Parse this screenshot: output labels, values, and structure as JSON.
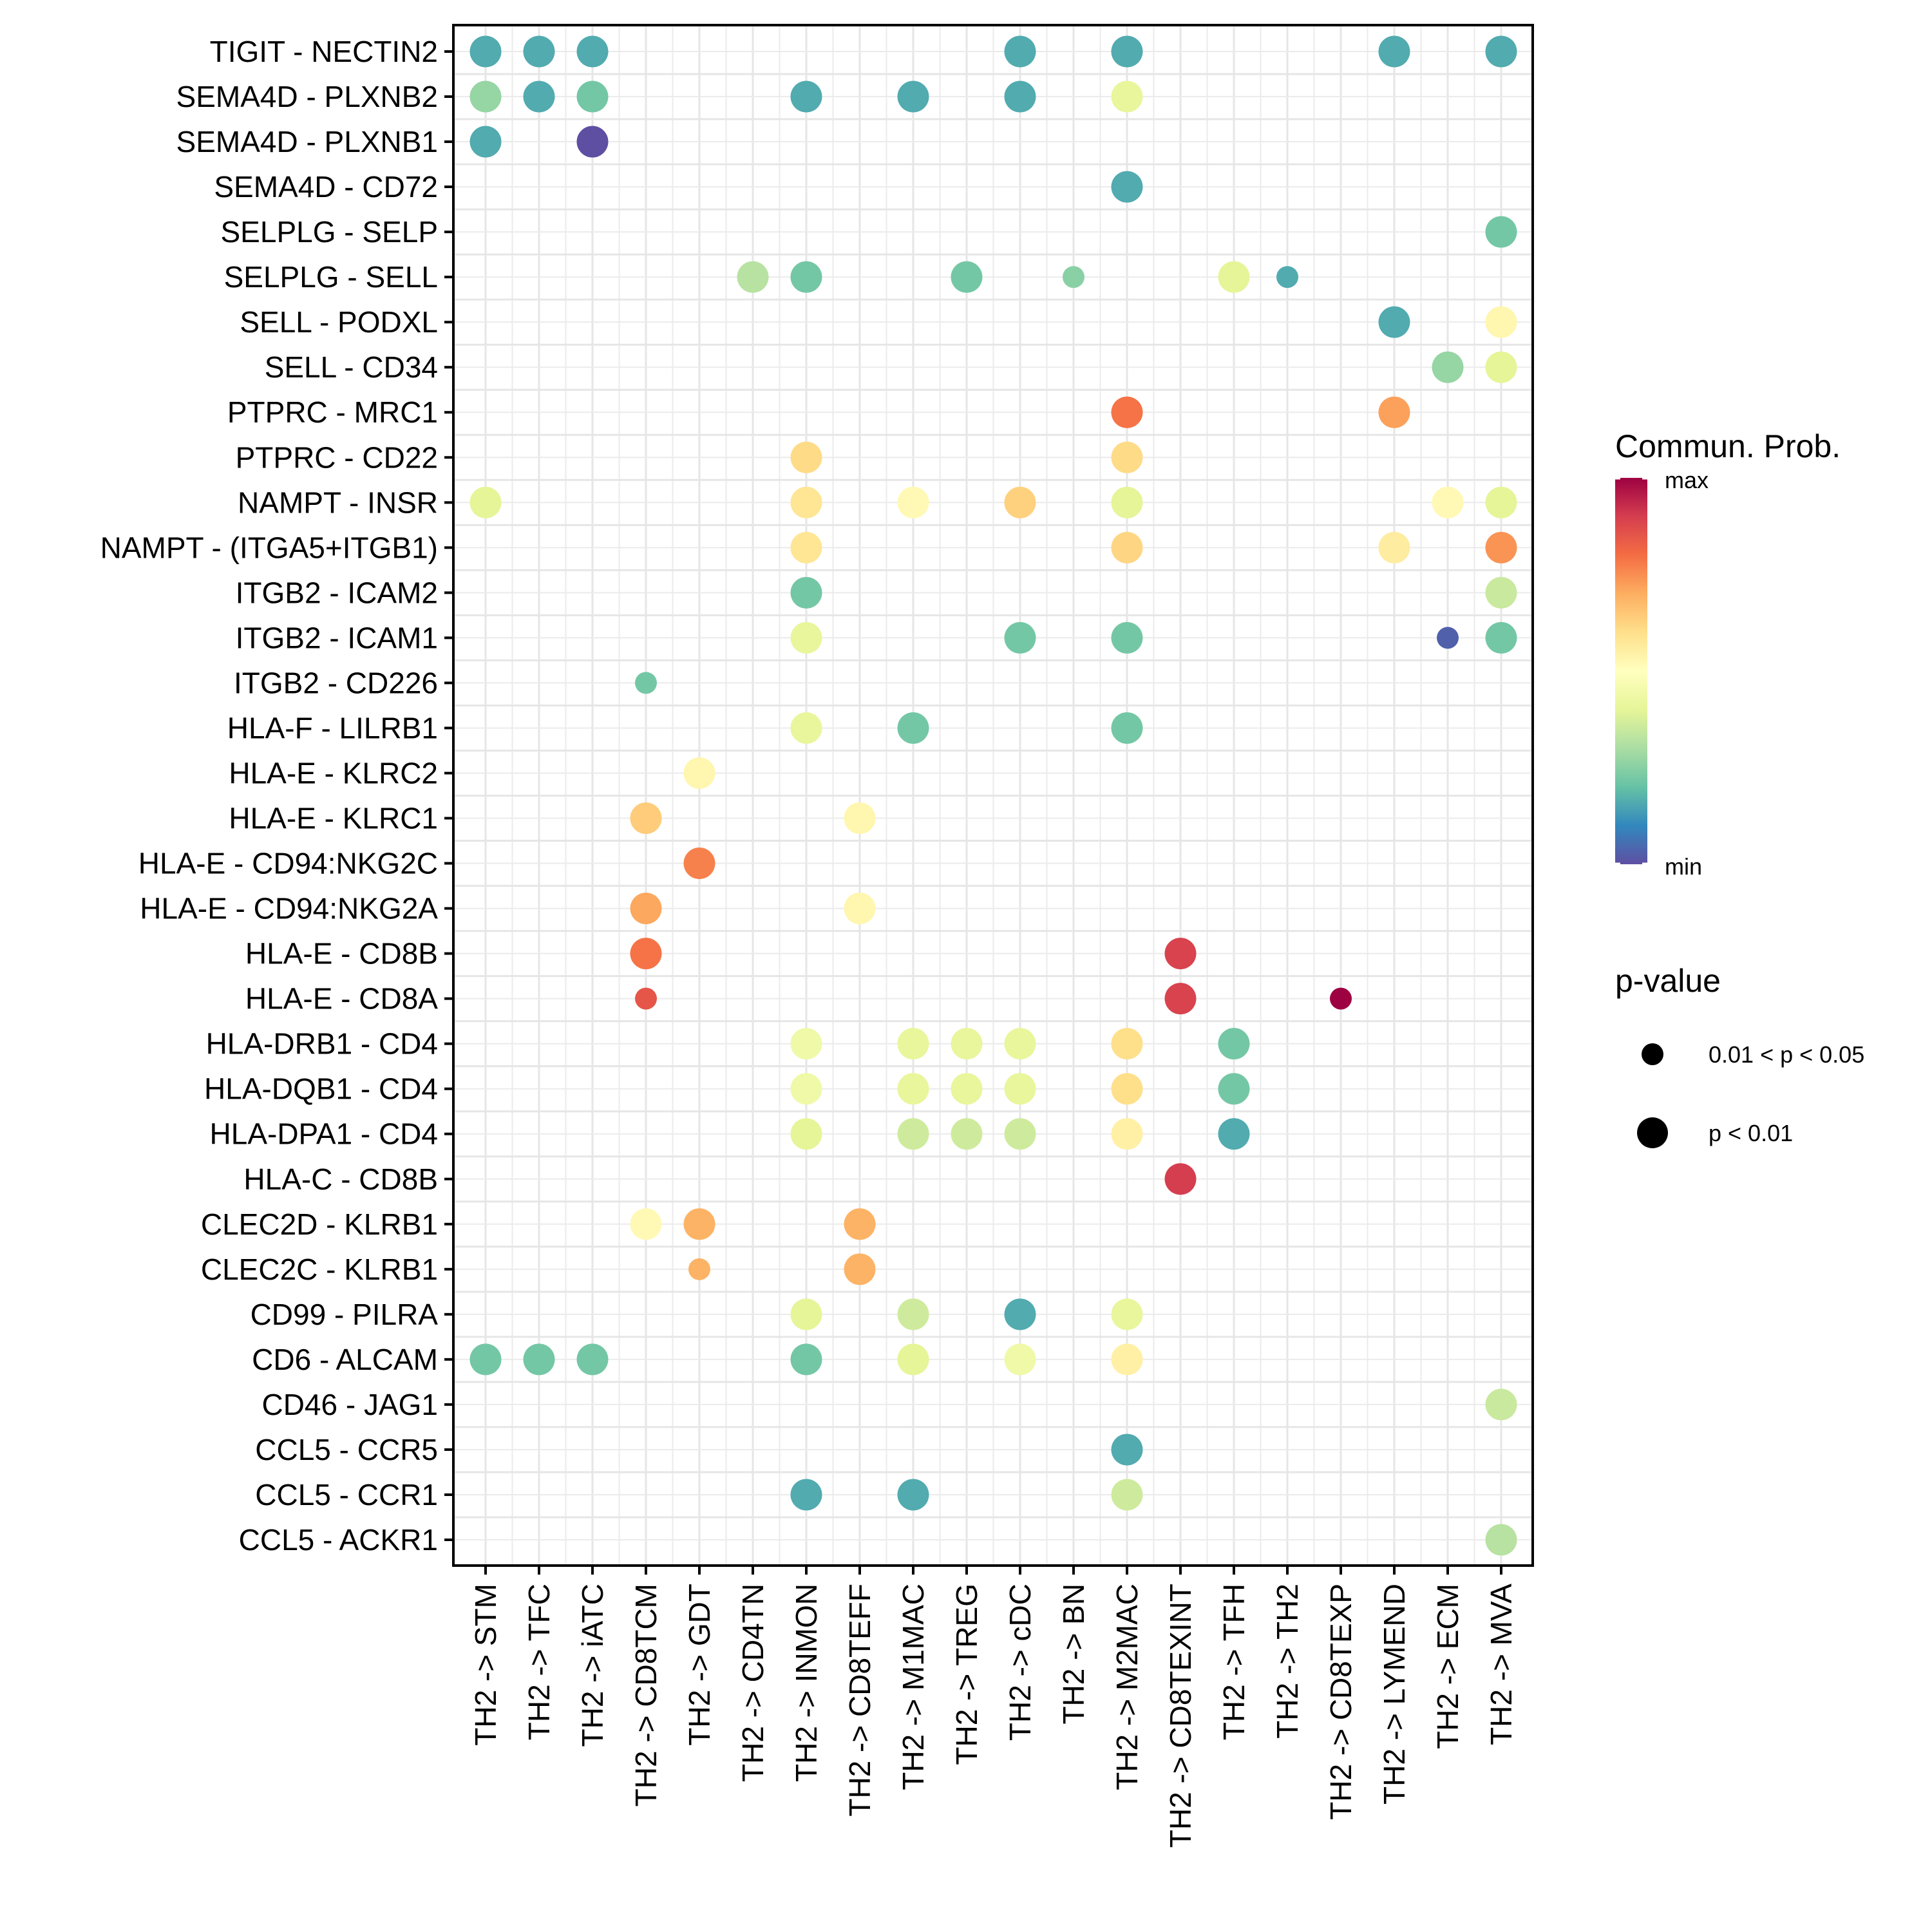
{
  "chart_data": {
    "type": "scatter",
    "subtype": "dot-plot",
    "title": "",
    "xlabel": "",
    "ylabel": "",
    "grid": true,
    "categories_x": [
      "TH2 -> STM",
      "TH2 -> TFC",
      "TH2 -> iATC",
      "TH2 -> CD8TCM",
      "TH2 -> GDT",
      "TH2 -> CD4TN",
      "TH2 -> INMON",
      "TH2 -> CD8TEFF",
      "TH2 -> M1MAC",
      "TH2 -> TREG",
      "TH2 -> cDC",
      "TH2 -> BN",
      "TH2 -> M2MAC",
      "TH2 -> CD8TEXINT",
      "TH2 -> TFH",
      "TH2 -> TH2",
      "TH2 -> CD8TEXP",
      "TH2 -> LYMEND",
      "TH2 -> ECM",
      "TH2 -> MVA"
    ],
    "categories_y": [
      "TIGIT - NECTIN2",
      "SEMA4D - PLXNB2",
      "SEMA4D - PLXNB1",
      "SEMA4D - CD72",
      "SELPLG - SELP",
      "SELPLG - SELL",
      "SELL - PODXL",
      "SELL - CD34",
      "PTPRC - MRC1",
      "PTPRC - CD22",
      "NAMPT - INSR",
      "NAMPT - (ITGA5+ITGB1)",
      "ITGB2 - ICAM2",
      "ITGB2 - ICAM1",
      "ITGB2 - CD226",
      "HLA-F - LILRB1",
      "HLA-E - KLRC2",
      "HLA-E - KLRC1",
      "HLA-E - CD94:NKG2C",
      "HLA-E - CD94:NKG2A",
      "HLA-E - CD8B",
      "HLA-E - CD8A",
      "HLA-DRB1 - CD4",
      "HLA-DQB1 - CD4",
      "HLA-DPA1 - CD4",
      "HLA-C - CD8B",
      "CLEC2D - KLRB1",
      "CLEC2C - KLRB1",
      "CD99 - PILRA",
      "CD6 - ALCAM",
      "CD46 - JAG1",
      "CCL5 - CCR5",
      "CCL5 - CCR1",
      "CCL5 - ACKR1"
    ],
    "value_scale": "normalized communication probability, 0 = min, 1 = max",
    "points": [
      {
        "y": 0,
        "x": 0,
        "prob": 0.16,
        "p": "p < 0.01"
      },
      {
        "y": 0,
        "x": 1,
        "prob": 0.16,
        "p": "p < 0.01"
      },
      {
        "y": 0,
        "x": 2,
        "prob": 0.16,
        "p": "p < 0.01"
      },
      {
        "y": 0,
        "x": 10,
        "prob": 0.16,
        "p": "p < 0.01"
      },
      {
        "y": 0,
        "x": 12,
        "prob": 0.16,
        "p": "p < 0.01"
      },
      {
        "y": 0,
        "x": 17,
        "prob": 0.16,
        "p": "p < 0.01"
      },
      {
        "y": 0,
        "x": 19,
        "prob": 0.16,
        "p": "p < 0.01"
      },
      {
        "y": 1,
        "x": 0,
        "prob": 0.27,
        "p": "p < 0.01"
      },
      {
        "y": 1,
        "x": 1,
        "prob": 0.16,
        "p": "p < 0.01"
      },
      {
        "y": 1,
        "x": 2,
        "prob": 0.22,
        "p": "p < 0.01"
      },
      {
        "y": 1,
        "x": 6,
        "prob": 0.16,
        "p": "p < 0.01"
      },
      {
        "y": 1,
        "x": 8,
        "prob": 0.16,
        "p": "p < 0.01"
      },
      {
        "y": 1,
        "x": 10,
        "prob": 0.16,
        "p": "p < 0.01"
      },
      {
        "y": 1,
        "x": 12,
        "prob": 0.41,
        "p": "p < 0.01"
      },
      {
        "y": 2,
        "x": 0,
        "prob": 0.16,
        "p": "p < 0.01"
      },
      {
        "y": 2,
        "x": 2,
        "prob": 0.0,
        "p": "p < 0.01"
      },
      {
        "y": 3,
        "x": 12,
        "prob": 0.16,
        "p": "p < 0.01"
      },
      {
        "y": 4,
        "x": 19,
        "prob": 0.22,
        "p": "p < 0.01"
      },
      {
        "y": 5,
        "x": 5,
        "prob": 0.32,
        "p": "p < 0.01"
      },
      {
        "y": 5,
        "x": 6,
        "prob": 0.22,
        "p": "p < 0.01"
      },
      {
        "y": 5,
        "x": 9,
        "prob": 0.22,
        "p": "p < 0.01"
      },
      {
        "y": 5,
        "x": 11,
        "prob": 0.25,
        "p": "0.01 < p < 0.05"
      },
      {
        "y": 5,
        "x": 14,
        "prob": 0.4,
        "p": "p < 0.01"
      },
      {
        "y": 5,
        "x": 15,
        "prob": 0.16,
        "p": "0.01 < p < 0.05"
      },
      {
        "y": 6,
        "x": 17,
        "prob": 0.16,
        "p": "p < 0.01"
      },
      {
        "y": 6,
        "x": 19,
        "prob": 0.53,
        "p": "p < 0.01"
      },
      {
        "y": 7,
        "x": 18,
        "prob": 0.27,
        "p": "p < 0.01"
      },
      {
        "y": 7,
        "x": 19,
        "prob": 0.4,
        "p": "p < 0.01"
      },
      {
        "y": 8,
        "x": 12,
        "prob": 0.79,
        "p": "p < 0.01"
      },
      {
        "y": 8,
        "x": 17,
        "prob": 0.72,
        "p": "p < 0.01"
      },
      {
        "y": 9,
        "x": 6,
        "prob": 0.61,
        "p": "p < 0.01"
      },
      {
        "y": 9,
        "x": 12,
        "prob": 0.61,
        "p": "p < 0.01"
      },
      {
        "y": 10,
        "x": 0,
        "prob": 0.4,
        "p": "p < 0.01"
      },
      {
        "y": 10,
        "x": 6,
        "prob": 0.58,
        "p": "p < 0.01"
      },
      {
        "y": 10,
        "x": 8,
        "prob": 0.52,
        "p": "p < 0.01"
      },
      {
        "y": 10,
        "x": 10,
        "prob": 0.63,
        "p": "p < 0.01"
      },
      {
        "y": 10,
        "x": 12,
        "prob": 0.4,
        "p": "p < 0.01"
      },
      {
        "y": 10,
        "x": 18,
        "prob": 0.52,
        "p": "p < 0.01"
      },
      {
        "y": 10,
        "x": 19,
        "prob": 0.4,
        "p": "p < 0.01"
      },
      {
        "y": 11,
        "x": 6,
        "prob": 0.58,
        "p": "p < 0.01"
      },
      {
        "y": 11,
        "x": 12,
        "prob": 0.62,
        "p": "p < 0.01"
      },
      {
        "y": 11,
        "x": 17,
        "prob": 0.56,
        "p": "p < 0.01"
      },
      {
        "y": 11,
        "x": 19,
        "prob": 0.74,
        "p": "p < 0.01"
      },
      {
        "y": 12,
        "x": 6,
        "prob": 0.22,
        "p": "p < 0.01"
      },
      {
        "y": 12,
        "x": 19,
        "prob": 0.35,
        "p": "p < 0.01"
      },
      {
        "y": 13,
        "x": 6,
        "prob": 0.41,
        "p": "p < 0.01"
      },
      {
        "y": 13,
        "x": 10,
        "prob": 0.22,
        "p": "p < 0.01"
      },
      {
        "y": 13,
        "x": 12,
        "prob": 0.22,
        "p": "p < 0.01"
      },
      {
        "y": 13,
        "x": 18,
        "prob": 0.03,
        "p": "0.01 < p < 0.05"
      },
      {
        "y": 13,
        "x": 19,
        "prob": 0.22,
        "p": "p < 0.01"
      },
      {
        "y": 14,
        "x": 3,
        "prob": 0.22,
        "p": "0.01 < p < 0.05"
      },
      {
        "y": 15,
        "x": 6,
        "prob": 0.41,
        "p": "p < 0.01"
      },
      {
        "y": 15,
        "x": 8,
        "prob": 0.22,
        "p": "p < 0.01"
      },
      {
        "y": 15,
        "x": 12,
        "prob": 0.22,
        "p": "p < 0.01"
      },
      {
        "y": 16,
        "x": 4,
        "prob": 0.53,
        "p": "p < 0.01"
      },
      {
        "y": 17,
        "x": 3,
        "prob": 0.64,
        "p": "p < 0.01"
      },
      {
        "y": 17,
        "x": 7,
        "prob": 0.53,
        "p": "p < 0.01"
      },
      {
        "y": 18,
        "x": 4,
        "prob": 0.77,
        "p": "p < 0.01"
      },
      {
        "y": 19,
        "x": 3,
        "prob": 0.71,
        "p": "p < 0.01"
      },
      {
        "y": 19,
        "x": 7,
        "prob": 0.53,
        "p": "p < 0.01"
      },
      {
        "y": 20,
        "x": 3,
        "prob": 0.79,
        "p": "p < 0.01"
      },
      {
        "y": 20,
        "x": 13,
        "prob": 0.89,
        "p": "p < 0.01"
      },
      {
        "y": 21,
        "x": 3,
        "prob": 0.85,
        "p": "0.01 < p < 0.05"
      },
      {
        "y": 21,
        "x": 13,
        "prob": 0.89,
        "p": "p < 0.01"
      },
      {
        "y": 21,
        "x": 16,
        "prob": 1.0,
        "p": "0.01 < p < 0.05"
      },
      {
        "y": 22,
        "x": 6,
        "prob": 0.44,
        "p": "p < 0.01"
      },
      {
        "y": 22,
        "x": 8,
        "prob": 0.41,
        "p": "p < 0.01"
      },
      {
        "y": 22,
        "x": 9,
        "prob": 0.41,
        "p": "p < 0.01"
      },
      {
        "y": 22,
        "x": 10,
        "prob": 0.41,
        "p": "p < 0.01"
      },
      {
        "y": 22,
        "x": 12,
        "prob": 0.6,
        "p": "p < 0.01"
      },
      {
        "y": 22,
        "x": 14,
        "prob": 0.22,
        "p": "p < 0.01"
      },
      {
        "y": 23,
        "x": 6,
        "prob": 0.44,
        "p": "p < 0.01"
      },
      {
        "y": 23,
        "x": 8,
        "prob": 0.41,
        "p": "p < 0.01"
      },
      {
        "y": 23,
        "x": 9,
        "prob": 0.41,
        "p": "p < 0.01"
      },
      {
        "y": 23,
        "x": 10,
        "prob": 0.41,
        "p": "p < 0.01"
      },
      {
        "y": 23,
        "x": 12,
        "prob": 0.6,
        "p": "p < 0.01"
      },
      {
        "y": 23,
        "x": 14,
        "prob": 0.22,
        "p": "p < 0.01"
      },
      {
        "y": 24,
        "x": 6,
        "prob": 0.4,
        "p": "p < 0.01"
      },
      {
        "y": 24,
        "x": 8,
        "prob": 0.36,
        "p": "p < 0.01"
      },
      {
        "y": 24,
        "x": 9,
        "prob": 0.36,
        "p": "p < 0.01"
      },
      {
        "y": 24,
        "x": 10,
        "prob": 0.36,
        "p": "p < 0.01"
      },
      {
        "y": 24,
        "x": 12,
        "prob": 0.55,
        "p": "p < 0.01"
      },
      {
        "y": 24,
        "x": 14,
        "prob": 0.16,
        "p": "p < 0.01"
      },
      {
        "y": 25,
        "x": 13,
        "prob": 0.9,
        "p": "p < 0.01"
      },
      {
        "y": 26,
        "x": 3,
        "prob": 0.52,
        "p": "p < 0.01"
      },
      {
        "y": 26,
        "x": 4,
        "prob": 0.69,
        "p": "p < 0.01"
      },
      {
        "y": 26,
        "x": 7,
        "prob": 0.69,
        "p": "p < 0.01"
      },
      {
        "y": 27,
        "x": 4,
        "prob": 0.69,
        "p": "0.01 < p < 0.05"
      },
      {
        "y": 27,
        "x": 7,
        "prob": 0.69,
        "p": "p < 0.01"
      },
      {
        "y": 28,
        "x": 6,
        "prob": 0.4,
        "p": "p < 0.01"
      },
      {
        "y": 28,
        "x": 8,
        "prob": 0.36,
        "p": "p < 0.01"
      },
      {
        "y": 28,
        "x": 10,
        "prob": 0.16,
        "p": "p < 0.01"
      },
      {
        "y": 28,
        "x": 12,
        "prob": 0.41,
        "p": "p < 0.01"
      },
      {
        "y": 29,
        "x": 0,
        "prob": 0.22,
        "p": "p < 0.01"
      },
      {
        "y": 29,
        "x": 1,
        "prob": 0.22,
        "p": "p < 0.01"
      },
      {
        "y": 29,
        "x": 2,
        "prob": 0.22,
        "p": "p < 0.01"
      },
      {
        "y": 29,
        "x": 6,
        "prob": 0.22,
        "p": "p < 0.01"
      },
      {
        "y": 29,
        "x": 8,
        "prob": 0.4,
        "p": "p < 0.01"
      },
      {
        "y": 29,
        "x": 10,
        "prob": 0.44,
        "p": "p < 0.01"
      },
      {
        "y": 29,
        "x": 12,
        "prob": 0.55,
        "p": "p < 0.01"
      },
      {
        "y": 30,
        "x": 19,
        "prob": 0.35,
        "p": "p < 0.01"
      },
      {
        "y": 31,
        "x": 12,
        "prob": 0.16,
        "p": "p < 0.01"
      },
      {
        "y": 32,
        "x": 6,
        "prob": 0.16,
        "p": "p < 0.01"
      },
      {
        "y": 32,
        "x": 8,
        "prob": 0.16,
        "p": "p < 0.01"
      },
      {
        "y": 32,
        "x": 12,
        "prob": 0.36,
        "p": "p < 0.01"
      },
      {
        "y": 33,
        "x": 19,
        "prob": 0.32,
        "p": "p < 0.01"
      }
    ],
    "color_legend": {
      "title": "Commun. Prob.",
      "max_label": "max",
      "min_label": "min",
      "palette": [
        "#5E4FA2",
        "#3288BD",
        "#66C2A5",
        "#ABDDA4",
        "#E6F598",
        "#FFFFBF",
        "#FEE08B",
        "#FDAE61",
        "#F46D43",
        "#D53E4F",
        "#9E0142"
      ]
    },
    "size_legend": {
      "title": "p-value",
      "entries": [
        {
          "label": "0.01 < p < 0.05",
          "size": "small"
        },
        {
          "label": "p < 0.01",
          "size": "large"
        }
      ]
    },
    "legend_placement": "right"
  }
}
